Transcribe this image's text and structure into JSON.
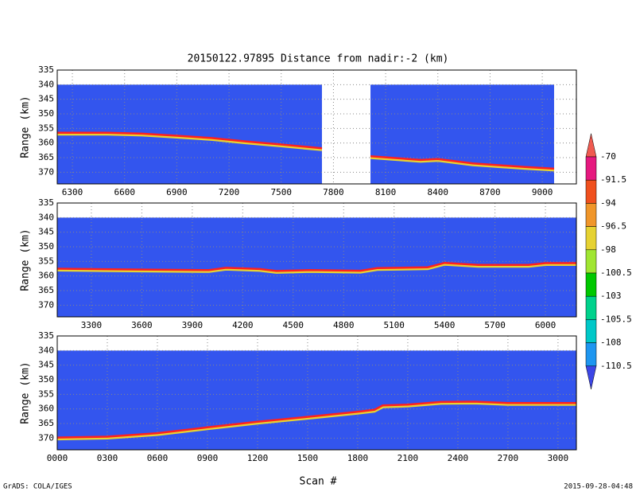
{
  "title": "20150122.97895    Distance from nadir:-2 (km)",
  "xlabel": "Scan #",
  "footer_left": "GrADS: COLA/IGES",
  "footer_right": "2015-09-28-04:48",
  "colorbar": {
    "labels": [
      -70,
      -91.5,
      -94,
      -96.5,
      -98,
      -100.5,
      -103,
      -105.5,
      -108,
      -110.5
    ],
    "colors": [
      "#f05a50",
      "#e6197f",
      "#f0501e",
      "#f0962a",
      "#e6d232",
      "#a0e632",
      "#00c800",
      "#00d28c",
      "#00c8c8",
      "#1e96f0",
      "#3c46e6"
    ]
  },
  "chart_data": [
    {
      "type": "line",
      "ylabel": "Range (km)",
      "xlim": [
        6213,
        9196
      ],
      "ylim": [
        374,
        335
      ],
      "xticks": [
        6300,
        6600,
        6900,
        7200,
        7500,
        7800,
        8100,
        8400,
        8700,
        9000
      ],
      "yticks": [
        335,
        340,
        345,
        350,
        355,
        360,
        365,
        370
      ],
      "grid": true,
      "field_color": "#3355ee",
      "field_top": 340,
      "field_segments": [
        [
          6213,
          7734
        ],
        [
          8013,
          9068
        ]
      ],
      "series": [
        {
          "color": "#ff2020",
          "x": [
            6213,
            6500,
            6700,
            6900,
            7100,
            7300,
            7500,
            7734,
            7900,
            8013,
            8300,
            8400,
            8600,
            8900,
            9068
          ],
          "values": [
            356.5,
            356.5,
            356.8,
            357.5,
            358.3,
            359.5,
            360.5,
            361.8,
            null,
            364.5,
            365.8,
            365.5,
            367,
            368.2,
            368.8
          ]
        }
      ]
    },
    {
      "type": "line",
      "ylabel": "Range (km)",
      "xlim": [
        3097,
        6184
      ],
      "ylim": [
        374,
        335
      ],
      "xticks": [
        3300,
        3600,
        3900,
        4200,
        4500,
        4800,
        5100,
        5400,
        5700,
        6000
      ],
      "yticks": [
        335,
        340,
        345,
        350,
        355,
        360,
        365,
        370
      ],
      "grid": true,
      "field_color": "#3355ee",
      "field_top": 340,
      "field_segments": [
        [
          3097,
          6184
        ]
      ],
      "series": [
        {
          "color": "#ff2020",
          "x": [
            3097,
            3600,
            4000,
            4100,
            4300,
            4400,
            4600,
            4900,
            5000,
            5300,
            5400,
            5600,
            5900,
            6000,
            6184
          ],
          "values": [
            357.5,
            357.8,
            358,
            357.2,
            357.6,
            358.3,
            358,
            358.2,
            357.3,
            357,
            355.5,
            356.2,
            356.2,
            355.6,
            355.6
          ]
        }
      ]
    },
    {
      "type": "line",
      "ylabel": "Range (km)",
      "xlim": [
        0,
        3110
      ],
      "ylim": [
        374,
        335
      ],
      "xticks": [
        {
          "value": 0,
          "label": "0000"
        },
        {
          "value": 300,
          "label": "0300"
        },
        {
          "value": 600,
          "label": "0600"
        },
        {
          "value": 900,
          "label": "0900"
        },
        1200,
        1500,
        1800,
        2100,
        2400,
        2700,
        3000
      ],
      "yticks": [
        335,
        340,
        345,
        350,
        355,
        360,
        365,
        370
      ],
      "grid": true,
      "field_color": "#3355ee",
      "field_top": 340,
      "field_segments": [
        [
          0,
          3110
        ]
      ],
      "series": [
        {
          "color": "#ff2020",
          "x": [
            0,
            300,
            600,
            900,
            1200,
            1500,
            1800,
            1900,
            1950,
            2100,
            2300,
            2500,
            2700,
            3110
          ],
          "values": [
            369.8,
            369.5,
            368.3,
            366.3,
            364.4,
            362.7,
            361,
            360.3,
            358.8,
            358.5,
            357.6,
            357.5,
            358,
            358
          ]
        }
      ]
    }
  ]
}
